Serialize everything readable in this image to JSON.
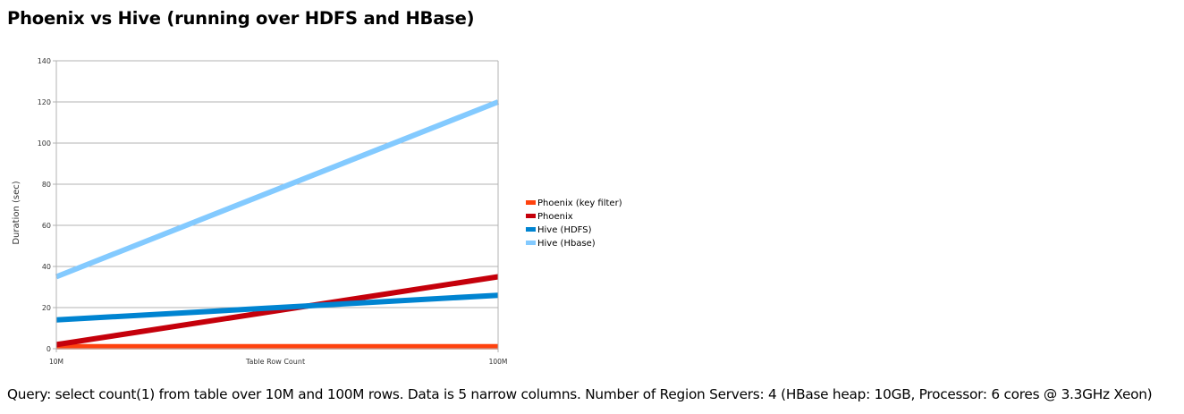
{
  "page": {
    "title": "Phoenix vs Hive (running over HDFS and HBase)",
    "caption": "Query: select count(1) from table over 10M and 100M rows. Data is 5 narrow columns. Number of Region Servers: 4 (HBase heap: 10GB, Processor: 6 cores @ 3.3GHz Xeon)"
  },
  "chart_data": {
    "type": "line",
    "title": "",
    "xlabel": "Table Row Count",
    "ylabel": "Duration (sec)",
    "categories": [
      "10M",
      "100M"
    ],
    "ylim": [
      0,
      140
    ],
    "yticks": [
      0,
      20,
      40,
      60,
      80,
      100,
      120,
      140
    ],
    "grid": true,
    "legend_position": "right",
    "series": [
      {
        "name": "Phoenix (key filter)",
        "values": [
          1,
          1
        ],
        "color": "#ff420e"
      },
      {
        "name": "Phoenix",
        "values": [
          2,
          35
        ],
        "color": "#c5000b"
      },
      {
        "name": "Hive (HDFS)",
        "values": [
          14,
          26
        ],
        "color": "#0084d1"
      },
      {
        "name": "Hive (Hbase)",
        "values": [
          35,
          120
        ],
        "color": "#83caff"
      }
    ]
  }
}
